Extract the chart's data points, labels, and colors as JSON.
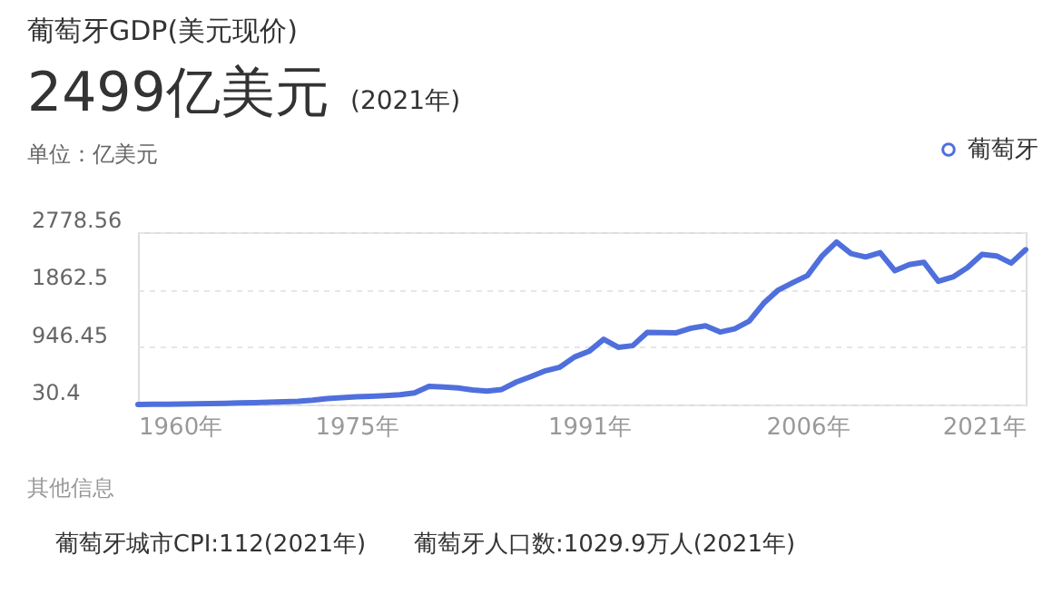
{
  "chart_data": {
    "type": "line",
    "title": "葡萄牙GDP(美元现价)",
    "annotations": [
      "2499亿美元",
      "(2021年)",
      "单位：亿美元",
      "其他信息",
      "葡萄牙城市CPI:112(2021年)",
      "葡萄牙人口数:1029.9万人(2021年)"
    ],
    "x": [
      1960,
      1961,
      1962,
      1963,
      1964,
      1965,
      1966,
      1967,
      1968,
      1969,
      1970,
      1971,
      1972,
      1973,
      1974,
      1975,
      1976,
      1977,
      1978,
      1979,
      1980,
      1981,
      1982,
      1983,
      1984,
      1985,
      1986,
      1987,
      1988,
      1989,
      1990,
      1991,
      1992,
      1993,
      1994,
      1995,
      1996,
      1997,
      1998,
      1999,
      2000,
      2001,
      2002,
      2003,
      2004,
      2005,
      2006,
      2007,
      2008,
      2009,
      2010,
      2011,
      2012,
      2013,
      2014,
      2015,
      2016,
      2017,
      2018,
      2019,
      2020,
      2021
    ],
    "series": [
      {
        "name": "葡萄牙",
        "color": "#4f6fdc",
        "values": [
          30.4,
          33,
          35,
          38,
          42,
          46,
          50,
          55,
          61,
          66,
          74,
          82,
          98,
          125,
          140,
          152,
          160,
          172,
          185,
          215,
          320,
          310,
          295,
          262,
          245,
          270,
          388,
          475,
          568,
          626,
          788,
          879,
          1070,
          943,
          969,
          1180,
          1175,
          1174,
          1246,
          1284,
          1186,
          1237,
          1358,
          1646,
          1855,
          1973,
          2086,
          2397,
          2620,
          2437,
          2383,
          2451,
          2164,
          2261,
          2299,
          1994,
          2064,
          2214,
          2424,
          2400,
          2285,
          2499
        ]
      }
    ],
    "xlim": [
      1960,
      2021
    ],
    "xticks": [
      {
        "value": 1960,
        "label": "1960年"
      },
      {
        "value": 1975,
        "label": "1975年"
      },
      {
        "value": 1991,
        "label": "1991年"
      },
      {
        "value": 2006,
        "label": "2006年"
      },
      {
        "value": 2021,
        "label": "2021年"
      }
    ],
    "ylim": [
      30.4,
      2778.56
    ],
    "yticks": [
      30.4,
      946.45,
      1862.5,
      2778.56
    ],
    "grid": "y",
    "legend": "top right",
    "marker": "none",
    "line_style": "solid"
  }
}
